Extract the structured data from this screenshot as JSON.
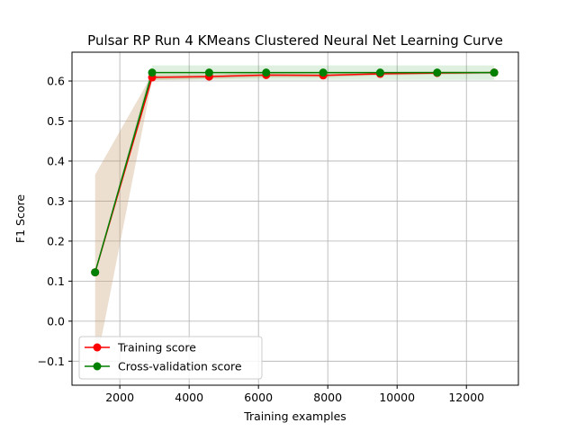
{
  "chart_data": {
    "type": "line",
    "title": "Pulsar RP Run 4 KMeans Clustered Neural Net Learning Curve",
    "xlabel": "Training examples",
    "ylabel": "F1 Score",
    "xlim": [
      620,
      13500
    ],
    "ylim": [
      -0.16,
      0.672
    ],
    "xticks": [
      2000,
      4000,
      6000,
      8000,
      10000,
      12000
    ],
    "xtick_labels": [
      "2000",
      "4000",
      "6000",
      "8000",
      "10000",
      "12000"
    ],
    "yticks": [
      -0.1,
      0.0,
      0.1,
      0.2,
      0.3,
      0.4,
      0.5,
      0.6
    ],
    "ytick_labels": [
      "−0.1",
      "0.0",
      "0.1",
      "0.2",
      "0.3",
      "0.4",
      "0.5",
      "0.6"
    ],
    "grid": true,
    "legend_position": "lower-left",
    "x": [
      1287,
      2932,
      4577,
      6222,
      7867,
      9512,
      11157,
      12802
    ],
    "series": [
      {
        "name": "Training score",
        "color": "#ff0000",
        "band_color": "#c49a6c",
        "values": [
          0.122,
          0.609,
          0.611,
          0.615,
          0.614,
          0.618,
          0.62,
          0.621
        ],
        "band_lower": [
          -0.122,
          0.602,
          0.605,
          0.609,
          0.609,
          0.614,
          0.616,
          0.618
        ],
        "band_upper": [
          0.366,
          0.616,
          0.617,
          0.621,
          0.619,
          0.622,
          0.624,
          0.624
        ]
      },
      {
        "name": "Cross-validation score",
        "color": "#008000",
        "band_color": "#008000",
        "values": [
          0.122,
          0.621,
          0.621,
          0.621,
          0.621,
          0.621,
          0.621,
          0.621
        ],
        "band_lower": [
          0.122,
          0.603,
          0.603,
          0.603,
          0.603,
          0.603,
          0.603,
          0.603
        ],
        "band_upper": [
          0.122,
          0.639,
          0.639,
          0.639,
          0.639,
          0.639,
          0.639,
          0.639
        ]
      }
    ]
  }
}
